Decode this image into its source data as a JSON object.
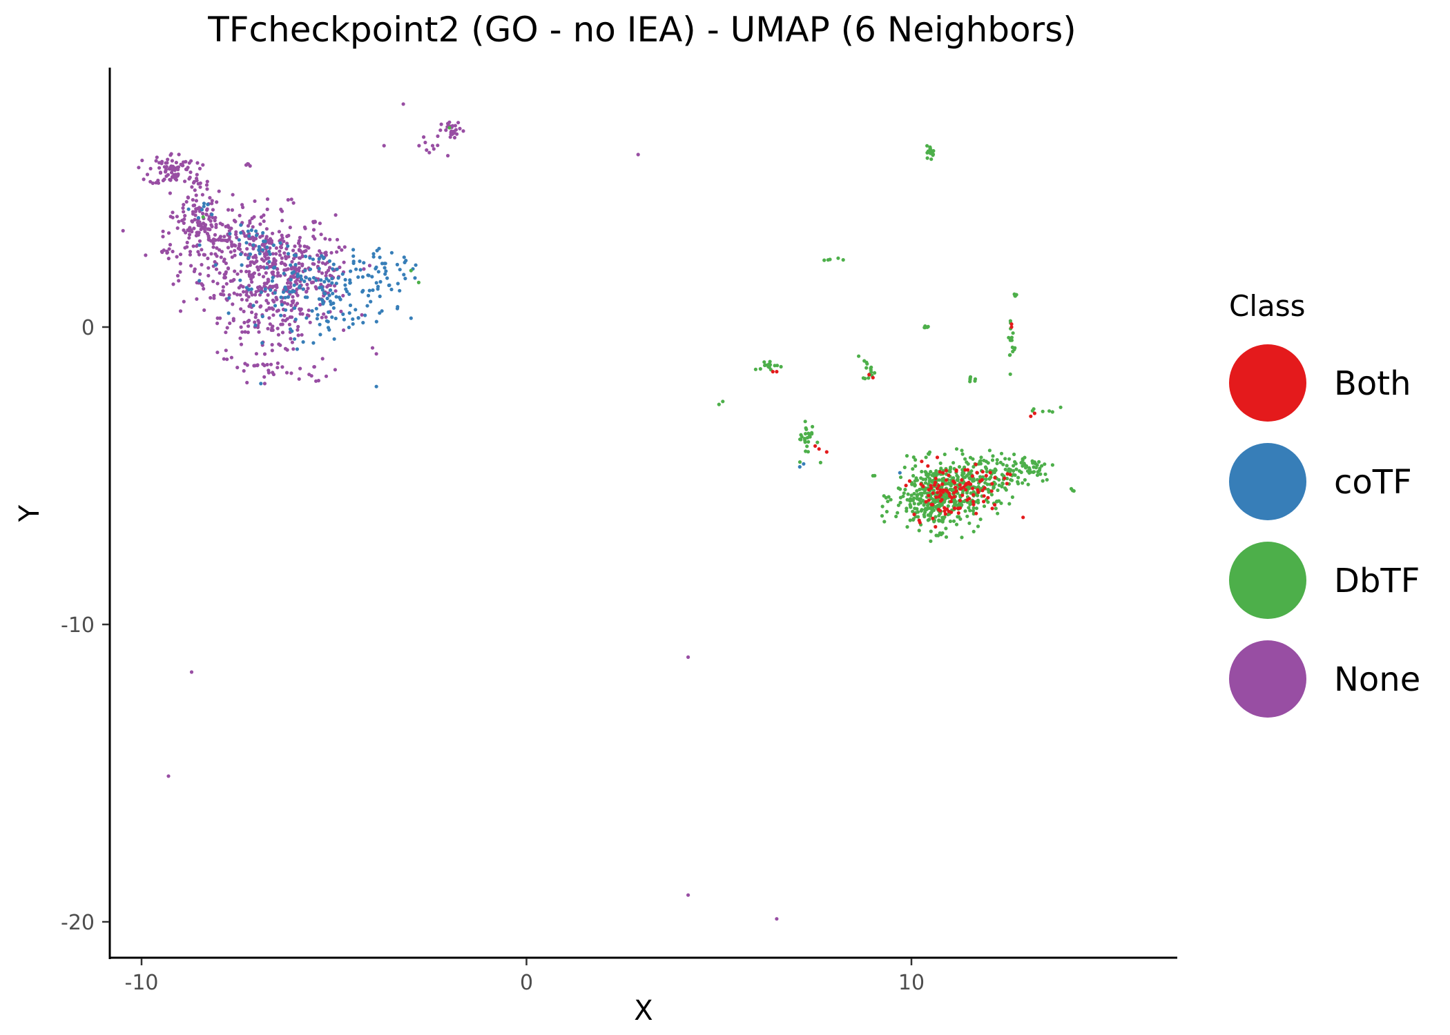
{
  "chart_data": {
    "type": "scatter",
    "title": "TFcheckpoint2 (GO - no IEA) - UMAP (6 Neighbors)",
    "xlabel": "X",
    "ylabel": "Y",
    "xlim": [
      -11,
      17
    ],
    "ylim": [
      -21.3,
      8.8
    ],
    "x_ticks": [
      -10,
      0,
      10
    ],
    "y_ticks": [
      0,
      -10,
      -20
    ],
    "grid": false,
    "legend": {
      "title": "Class",
      "placement": "right",
      "items": [
        {
          "label": "Both",
          "color": "#e41a1c"
        },
        {
          "label": "coTF",
          "color": "#377eb8"
        },
        {
          "label": "DbTF",
          "color": "#4daf4a"
        },
        {
          "label": "None",
          "color": "#984ea3"
        }
      ]
    },
    "series": [
      {
        "name": "None",
        "color": "#984ea3",
        "clusters": [
          {
            "cx": -7.0,
            "cy": 2.2,
            "sx": 1.0,
            "sy": 0.9,
            "n": 330
          },
          {
            "cx": -6.0,
            "cy": 1.6,
            "sx": 0.8,
            "sy": 0.7,
            "n": 200
          },
          {
            "cx": -8.4,
            "cy": 3.2,
            "sx": 0.5,
            "sy": 0.45,
            "n": 110
          },
          {
            "cx": -9.2,
            "cy": 5.3,
            "sx": 0.3,
            "sy": 0.28,
            "n": 80
          },
          {
            "cx": -8.6,
            "cy": 4.4,
            "sx": 0.3,
            "sy": 0.45,
            "n": 40
          },
          {
            "cx": -6.8,
            "cy": 0.0,
            "sx": 0.5,
            "sy": 0.4,
            "n": 60
          },
          {
            "cx": -7.1,
            "cy": -1.2,
            "sx": 0.35,
            "sy": 0.3,
            "n": 25
          },
          {
            "cx": -5.8,
            "cy": -1.6,
            "sx": 0.6,
            "sy": 0.25,
            "n": 15
          },
          {
            "cx": -1.9,
            "cy": 6.6,
            "sx": 0.15,
            "sy": 0.15,
            "n": 25
          },
          {
            "cx": -2.5,
            "cy": 6.0,
            "sx": 0.2,
            "sy": 0.25,
            "n": 10
          },
          {
            "cx": -9.3,
            "cy": 2.5,
            "sx": 0.2,
            "sy": 0.12,
            "n": 10
          },
          {
            "cx": -7.2,
            "cy": 5.5,
            "sx": 0.1,
            "sy": 0.08,
            "n": 4
          }
        ],
        "points": [
          [
            -3.2,
            7.5
          ],
          [
            -3.7,
            6.1
          ],
          [
            2.9,
            5.8
          ],
          [
            -8.7,
            -11.6
          ],
          [
            -9.3,
            -15.1
          ],
          [
            4.2,
            -11.1
          ],
          [
            4.2,
            -19.1
          ],
          [
            6.5,
            -19.9
          ],
          [
            -4.0,
            -0.7
          ],
          [
            -3.9,
            -0.9
          ],
          [
            -5.4,
            -1.8
          ],
          [
            -6.8,
            -1.9
          ]
        ]
      },
      {
        "name": "coTF",
        "color": "#377eb8",
        "clusters": [
          {
            "cx": -5.5,
            "cy": 1.3,
            "sx": 1.0,
            "sy": 0.65,
            "n": 150
          },
          {
            "cx": -6.8,
            "cy": 2.7,
            "sx": 0.45,
            "sy": 0.35,
            "n": 30
          },
          {
            "cx": -3.7,
            "cy": 1.8,
            "sx": 0.45,
            "sy": 0.35,
            "n": 40
          },
          {
            "cx": -4.9,
            "cy": 0.2,
            "sx": 0.5,
            "sy": 0.25,
            "n": 15
          },
          {
            "cx": -8.3,
            "cy": 4.0,
            "sx": 0.2,
            "sy": 0.15,
            "n": 8
          }
        ],
        "points": [
          [
            -3.9,
            -2.0
          ],
          [
            -3.0,
            0.3
          ],
          [
            -3.5,
            2.5
          ],
          [
            -6.9,
            -1.9
          ],
          [
            -5.8,
            -0.5
          ],
          [
            -4.5,
            2.6
          ],
          [
            7.2,
            -4.6
          ],
          [
            7.1,
            -4.7
          ],
          [
            9.7,
            -4.9
          ]
        ]
      },
      {
        "name": "DbTF",
        "color": "#4daf4a",
        "clusters": [
          {
            "cx": 10.7,
            "cy": -5.7,
            "sx": 0.55,
            "sy": 0.55,
            "n": 420
          },
          {
            "cx": 11.8,
            "cy": -5.1,
            "sx": 0.55,
            "sy": 0.45,
            "n": 120
          },
          {
            "cx": 12.9,
            "cy": -4.7,
            "sx": 0.45,
            "sy": 0.25,
            "n": 60
          },
          {
            "cx": 10.5,
            "cy": 5.9,
            "sx": 0.05,
            "sy": 0.1,
            "n": 20
          },
          {
            "cx": 7.3,
            "cy": -3.8,
            "sx": 0.12,
            "sy": 0.35,
            "n": 25
          },
          {
            "cx": 8.9,
            "cy": -1.4,
            "sx": 0.08,
            "sy": 0.2,
            "n": 15
          },
          {
            "cx": 6.3,
            "cy": -1.3,
            "sx": 0.2,
            "sy": 0.08,
            "n": 15
          },
          {
            "cx": 12.6,
            "cy": -0.6,
            "sx": 0.05,
            "sy": 0.6,
            "n": 15
          },
          {
            "cx": 11.6,
            "cy": -1.7,
            "sx": 0.08,
            "sy": 0.06,
            "n": 6
          },
          {
            "cx": 10.4,
            "cy": 0.0,
            "sx": 0.05,
            "sy": 0.05,
            "n": 5
          },
          {
            "cx": 7.9,
            "cy": 2.3,
            "sx": 0.12,
            "sy": 0.05,
            "n": 5
          },
          {
            "cx": 13.4,
            "cy": -2.8,
            "sx": 0.2,
            "sy": 0.1,
            "n": 6
          },
          {
            "cx": 12.7,
            "cy": 1.1,
            "sx": 0.02,
            "sy": 0.08,
            "n": 4
          },
          {
            "cx": 14.2,
            "cy": -5.5,
            "sx": 0.05,
            "sy": 0.05,
            "n": 3
          }
        ],
        "points": [
          [
            5.1,
            -2.5
          ],
          [
            5.0,
            -2.6
          ],
          [
            9.0,
            -5.0
          ],
          [
            10.5,
            -7.2
          ],
          [
            -2.8,
            1.5
          ],
          [
            -3.0,
            1.9
          ],
          [
            -8.4,
            3.7
          ],
          [
            -2.0,
            6.7
          ]
        ]
      },
      {
        "name": "Both",
        "color": "#e41a1c",
        "clusters": [
          {
            "cx": 10.9,
            "cy": -5.5,
            "sx": 0.45,
            "sy": 0.45,
            "n": 90
          },
          {
            "cx": 11.7,
            "cy": -5.2,
            "sx": 0.45,
            "sy": 0.35,
            "n": 25
          }
        ],
        "points": [
          [
            12.6,
            0.0
          ],
          [
            12.6,
            0.1
          ],
          [
            13.1,
            -3.0
          ],
          [
            13.2,
            -2.9
          ],
          [
            9.0,
            -1.7
          ],
          [
            8.9,
            -1.6
          ],
          [
            6.4,
            -1.5
          ],
          [
            6.5,
            -1.5
          ],
          [
            7.5,
            -4.0
          ],
          [
            7.6,
            -4.1
          ],
          [
            7.8,
            -4.2
          ],
          [
            12.9,
            -6.4
          ],
          [
            12.1,
            -6.1
          ],
          [
            10.2,
            -6.5
          ]
        ]
      }
    ]
  }
}
